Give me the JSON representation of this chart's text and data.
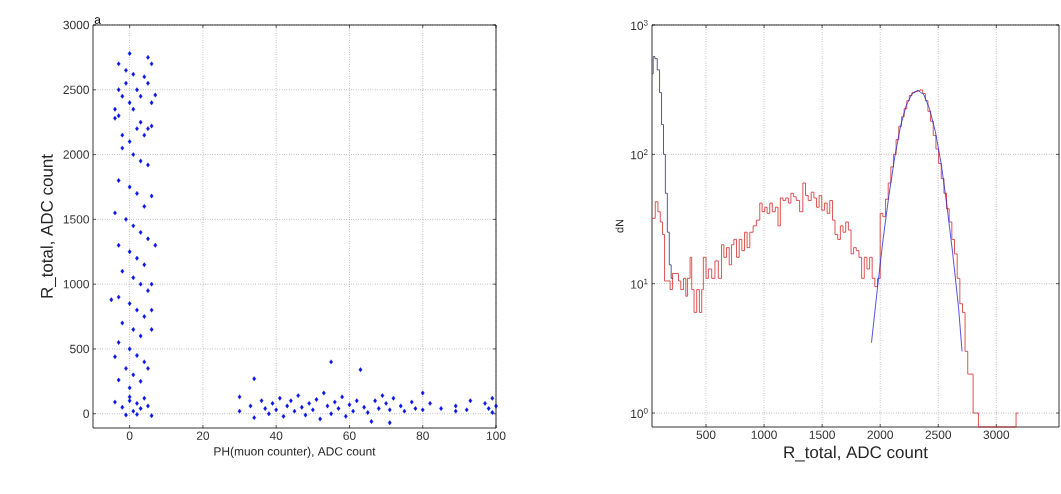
{
  "chart_data": [
    {
      "type": "scatter",
      "xlabel": "PH(muon counter), ADC count",
      "ylabel": "R_total, ADC count",
      "annotations": [
        "a"
      ],
      "xlim": [
        -10,
        100
      ],
      "ylim": [
        -110,
        3000
      ],
      "xticks": [
        0,
        20,
        40,
        60,
        80,
        100
      ],
      "yticks": [
        0,
        500,
        1000,
        1500,
        2000,
        2500,
        3000
      ],
      "grid": true,
      "marker": "diamond",
      "series": [
        {
          "color": "#0a14e6",
          "x": [
            -3,
            -2,
            -1,
            0,
            1,
            2,
            3,
            4,
            5,
            6,
            -4,
            -2,
            0,
            2,
            4,
            -1,
            1,
            3,
            5,
            -3,
            0,
            5,
            6,
            7,
            -3,
            6,
            -4,
            1,
            3,
            -2,
            5,
            -3,
            0,
            2,
            4,
            6,
            -4,
            -1,
            1,
            3,
            5,
            -3,
            0,
            2,
            4,
            7,
            -2,
            1,
            3,
            5,
            6,
            -3,
            -5,
            0,
            2,
            4,
            6,
            -2,
            1,
            3,
            6,
            -3,
            0,
            2,
            4,
            -4,
            -1,
            1,
            3,
            -3,
            5,
            0,
            -4,
            -2,
            0,
            1,
            2,
            3,
            4,
            5,
            -1,
            6,
            0,
            2,
            34,
            55,
            63,
            30,
            30,
            33,
            34,
            36,
            37,
            38,
            39,
            40,
            41,
            42,
            43,
            44,
            45,
            46,
            47,
            48,
            49,
            50,
            51,
            52,
            53,
            54,
            55,
            56,
            57,
            58,
            59,
            60,
            61,
            62,
            64,
            65,
            66,
            67,
            68,
            69,
            70,
            71,
            71,
            72,
            74,
            75,
            77,
            78,
            80,
            80,
            82,
            85,
            89,
            89,
            92,
            93,
            97,
            98,
            99,
            100,
            99
          ],
          "values": [
            2300,
            2450,
            2550,
            2400,
            2350,
            2500,
            2250,
            2600,
            2200,
            2400,
            2350,
            2150,
            2100,
            2200,
            2150,
            2650,
            2620,
            2450,
            2550,
            2500,
            2780,
            2750,
            2700,
            2460,
            2700,
            2220,
            2280,
            2000,
            1950,
            2050,
            1920,
            1800,
            1750,
            1700,
            1600,
            1680,
            1550,
            1500,
            1450,
            1400,
            1350,
            1300,
            1250,
            1200,
            1150,
            1300,
            1100,
            1050,
            1000,
            950,
            1000,
            900,
            880,
            850,
            800,
            750,
            800,
            700,
            650,
            600,
            650,
            550,
            500,
            450,
            400,
            440,
            350,
            300,
            250,
            260,
            350,
            200,
            90,
            50,
            100,
            20,
            80,
            40,
            120,
            60,
            -10,
            -15,
            130,
            -5,
            270,
            400,
            340,
            130,
            20,
            60,
            -30,
            100,
            40,
            0,
            80,
            30,
            120,
            -20,
            60,
            100,
            20,
            140,
            50,
            -10,
            80,
            30,
            110,
            -40,
            160,
            60,
            0,
            90,
            40,
            130,
            -20,
            70,
            20,
            100,
            50,
            10,
            -60,
            100,
            40,
            140,
            80,
            -70,
            30,
            120,
            60,
            20,
            90,
            40,
            160,
            30,
            80,
            40,
            60,
            20,
            30,
            100,
            80,
            40,
            120,
            60,
            10
          ]
        }
      ]
    },
    {
      "type": "histogram",
      "xlabel": "R_total, ADC count",
      "ylabel": "dN",
      "log": "y",
      "grid": true,
      "xlim": [
        35,
        3540
      ],
      "ylim": [
        0.78,
        1000
      ],
      "xticks": [
        500,
        1000,
        1500,
        2000,
        2500,
        3000
      ],
      "yticks": [
        {
          "value": 1,
          "label": "10$^{0}$"
        },
        {
          "value": 10,
          "label": "10$^{1}$"
        },
        {
          "value": 100,
          "label": "10$^{2}$"
        },
        {
          "value": 1000,
          "label": "10$^{3}$"
        }
      ],
      "series": [
        {
          "color": "#d42a2a",
          "bins": [
            35,
            63,
            86,
            106,
            126,
            143,
            163,
            191,
            211,
            229,
            263,
            283,
            306,
            326,
            340,
            363,
            377,
            397,
            420,
            443,
            463,
            477,
            500,
            520,
            549,
            577,
            606,
            634,
            654,
            677,
            700,
            720,
            740,
            763,
            786,
            809,
            832,
            854,
            877,
            906,
            934,
            963,
            983,
            1006,
            1026,
            1049,
            1071,
            1097,
            1120,
            1140,
            1163,
            1186,
            1209,
            1231,
            1254,
            1277,
            1306,
            1334,
            1357,
            1380,
            1406,
            1429,
            1451,
            1474,
            1497,
            1520,
            1543,
            1566,
            1589,
            1611,
            1634,
            1657,
            1680,
            1703,
            1726,
            1749,
            1771,
            1794,
            1817,
            1840,
            1863,
            1886,
            1909,
            1931,
            1954,
            1977,
            2000,
            2023,
            2046,
            2069,
            2092,
            2114,
            2137,
            2160,
            2183,
            2206,
            2229,
            2251,
            2274,
            2297,
            2320,
            2343,
            2366,
            2389,
            2411,
            2434,
            2457,
            2480,
            2503,
            2526,
            2549,
            2571,
            2594,
            2617,
            2640,
            2663,
            2686,
            2709,
            2731,
            2754,
            2777,
            2800,
            2823,
            2846,
            3170,
            3190
          ],
          "values": [
            32,
            43,
            36,
            30,
            24,
            10.5,
            10.5,
            9,
            12,
            12,
            10.5,
            9,
            11,
            8,
            11,
            16,
            9,
            6,
            9,
            6,
            9,
            16,
            11,
            13,
            11,
            15,
            11,
            20,
            16,
            19,
            14,
            20,
            22,
            16,
            22,
            18,
            25,
            19,
            25,
            28,
            31,
            42,
            36,
            39,
            35,
            42,
            36,
            39,
            28,
            46,
            44,
            46,
            42,
            50,
            47,
            44,
            36,
            60,
            48,
            44,
            51,
            46,
            39,
            48,
            37,
            42,
            35,
            44,
            31,
            24,
            22,
            28,
            25,
            30,
            26,
            17,
            19,
            18,
            16,
            11,
            16,
            13,
            16,
            11,
            9.5,
            11,
            35,
            33,
            45,
            60,
            80,
            100,
            130,
            165,
            195,
            225,
            260,
            285,
            300,
            305,
            310,
            315,
            295,
            260,
            215,
            180,
            140,
            110,
            85,
            65,
            50,
            38,
            30,
            22,
            17,
            11,
            7,
            6,
            3,
            2,
            2,
            1,
            1,
            null,
            1
          ]
        },
        {
          "color": "#33335c",
          "bins": [
            35,
            45,
            60,
            80,
            100,
            117,
            134,
            150,
            167,
            184,
            200,
            217
          ],
          "values": [
            420,
            570,
            550,
            450,
            300,
            170,
            100,
            50,
            25,
            14,
            11
          ]
        },
        {
          "type": "line",
          "color": "#2828d8",
          "x": [
            1925,
            1975,
            2025,
            2075,
            2125,
            2175,
            2225,
            2275,
            2325,
            2375,
            2425,
            2475,
            2525,
            2575,
            2625,
            2675,
            2705
          ],
          "values": [
            3.5,
            9,
            22,
            48,
            95,
            165,
            240,
            295,
            312,
            290,
            225,
            150,
            85,
            40,
            17,
            6.5,
            3
          ]
        }
      ]
    }
  ]
}
